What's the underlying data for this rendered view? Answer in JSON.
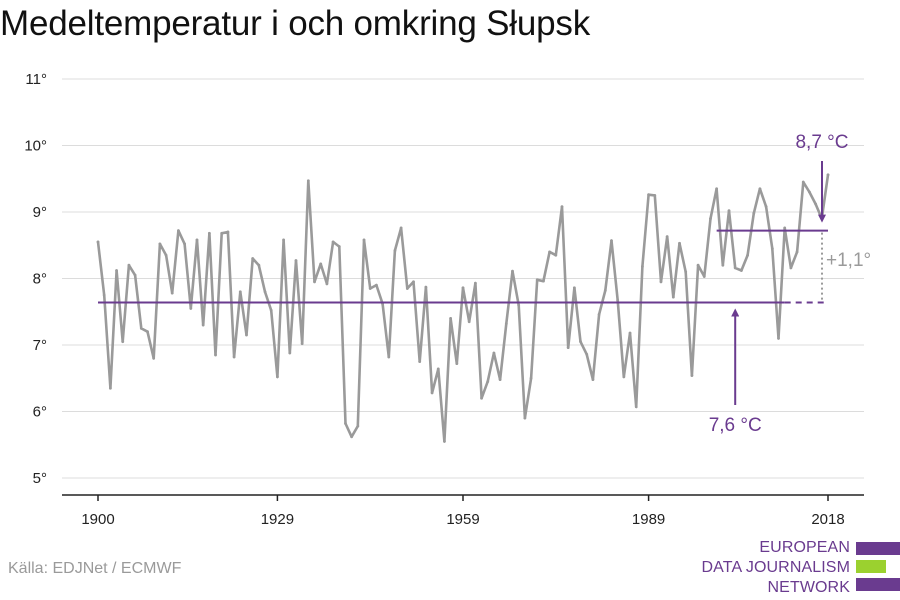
{
  "title": "Medeltemperatur i och omkring Słupsk",
  "source": "Källa: EDJNet / ECMWF",
  "logo": {
    "lines": [
      "EUROPEAN",
      "DATA JOURNALISM",
      "NETWORK"
    ],
    "colors": [
      "#6a3b8f",
      "#9bd12f",
      "#6a3b8f"
    ]
  },
  "colors": {
    "line": "#9a9a9a",
    "accent": "#6a3b8f",
    "grid": "#dcdcdc",
    "axis": "#222222",
    "diff": "#9a9a9a"
  },
  "chart_data": {
    "type": "line",
    "title": "Medeltemperatur i och omkring Słupsk",
    "xlabel": "",
    "ylabel": "",
    "xlim": [
      1900,
      2018
    ],
    "ylim": [
      5,
      11
    ],
    "x_ticks": [
      1900,
      1929,
      1959,
      1989,
      2018
    ],
    "y_ticks": [
      5,
      6,
      7,
      8,
      9,
      10,
      11
    ],
    "y_tick_labels": [
      "5°",
      "6°",
      "7°",
      "8°",
      "9°",
      "10°",
      "11°"
    ],
    "grid": true,
    "series": [
      {
        "x": [
          1900,
          1901,
          1902,
          1903,
          1904,
          1905,
          1906,
          1907,
          1908,
          1909,
          1910,
          1911,
          1912,
          1913,
          1914,
          1915,
          1916,
          1917,
          1918,
          1919,
          1920,
          1921,
          1922,
          1923,
          1924,
          1925,
          1926,
          1927,
          1928,
          1929,
          1930,
          1931,
          1932,
          1933,
          1934,
          1935,
          1936,
          1937,
          1938,
          1939,
          1940,
          1941,
          1942,
          1943,
          1944,
          1945,
          1946,
          1947,
          1948,
          1949,
          1950,
          1951,
          1952,
          1953,
          1954,
          1955,
          1956,
          1957,
          1958,
          1959,
          1960,
          1961,
          1962,
          1963,
          1964,
          1965,
          1966,
          1967,
          1968,
          1969,
          1970,
          1971,
          1972,
          1973,
          1974,
          1975,
          1976,
          1977,
          1978,
          1979,
          1980,
          1981,
          1982,
          1983,
          1984,
          1985,
          1986,
          1987,
          1988,
          1989,
          1990,
          1991,
          1992,
          1993,
          1994,
          1995,
          1996,
          1997,
          1998,
          1999,
          2000,
          2001,
          2002,
          2003,
          2004,
          2005,
          2006,
          2007,
          2008,
          2009,
          2010,
          2011,
          2012,
          2013,
          2014,
          2015,
          2016,
          2017,
          2018
        ],
        "values": [
          8.55,
          7.75,
          6.35,
          8.12,
          7.05,
          8.2,
          8.05,
          7.25,
          7.2,
          6.8,
          8.52,
          8.35,
          7.78,
          8.72,
          8.52,
          7.55,
          8.58,
          7.3,
          8.68,
          6.85,
          8.68,
          8.7,
          6.82,
          7.8,
          7.15,
          8.3,
          8.2,
          7.8,
          7.52,
          6.52,
          8.58,
          6.88,
          8.27,
          7.02,
          9.47,
          7.95,
          8.22,
          7.92,
          8.55,
          8.48,
          5.82,
          5.62,
          5.78,
          8.58,
          7.85,
          7.9,
          7.62,
          6.82,
          8.42,
          8.76,
          7.85,
          7.95,
          6.75,
          7.87,
          6.28,
          6.64,
          5.55,
          7.4,
          6.72,
          7.86,
          7.35,
          7.93,
          6.2,
          6.45,
          6.88,
          6.48,
          7.32,
          8.11,
          7.6,
          5.9,
          6.5,
          7.98,
          7.96,
          8.4,
          8.35,
          9.08,
          6.96,
          7.86,
          7.05,
          6.86,
          6.48,
          7.46,
          7.82,
          8.57,
          7.67,
          6.52,
          7.18,
          6.07,
          8.18,
          9.26,
          9.25,
          7.95,
          8.63,
          7.72,
          8.53,
          8.1,
          6.54,
          8.2,
          8.03,
          8.9,
          9.35,
          8.2,
          9.02,
          8.16,
          8.12,
          8.35,
          8.98,
          9.35,
          9.08,
          8.45,
          7.1,
          8.76,
          8.16,
          8.4,
          9.45,
          9.3,
          9.12,
          8.9,
          9.56
        ]
      }
    ],
    "annotations": {
      "baseline": {
        "x_from": 1900,
        "x_to": 2011,
        "x_dashed_to": 2018,
        "value": 7.64,
        "label": "7,6 °C"
      },
      "recent": {
        "x_from": 2000,
        "x_to": 2018,
        "value": 8.72,
        "label": "8,7 °C"
      },
      "difference": {
        "label": "+1,1°"
      }
    }
  }
}
